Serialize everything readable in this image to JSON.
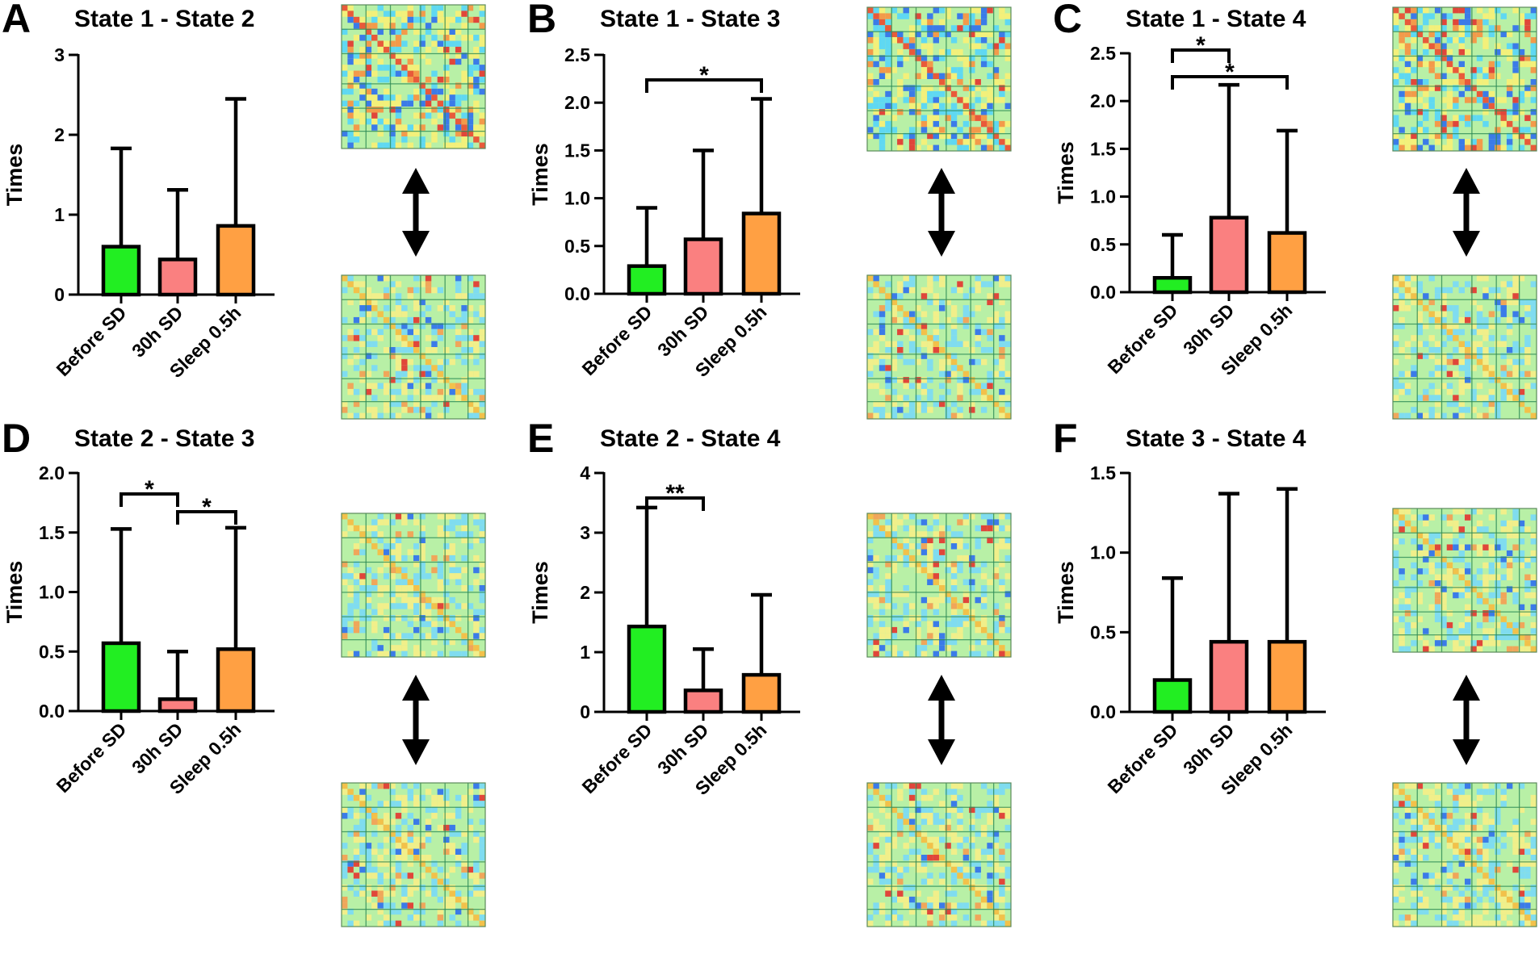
{
  "colors": {
    "green": "#22ee22",
    "pink": "#fa8080",
    "orange": "#ffa043",
    "axis": "#000000",
    "arrow": "#000000"
  },
  "chart_data": [
    {
      "type": "bar",
      "panel_letter": "A",
      "title": "State 1 - State 2",
      "ylabel": "Times",
      "categories": [
        "Before SD",
        "30h SD",
        "Sleep 0.5h"
      ],
      "values": [
        0.6,
        0.44,
        0.86
      ],
      "errors": [
        1.83,
        1.31,
        2.45
      ],
      "ylim": [
        0,
        3
      ],
      "yticks": [
        0,
        1,
        2,
        3
      ],
      "tick_labels": [
        "0",
        "1",
        "2",
        "3"
      ],
      "significance": []
    },
    {
      "type": "bar",
      "panel_letter": "B",
      "title": "State 1 - State 3",
      "ylabel": "Times",
      "categories": [
        "Before SD",
        "30h SD",
        "Sleep 0.5h"
      ],
      "values": [
        0.29,
        0.57,
        0.84
      ],
      "errors": [
        0.9,
        1.5,
        2.04
      ],
      "ylim": [
        0,
        2.5
      ],
      "yticks": [
        0,
        0.5,
        1,
        1.5,
        2,
        2.5
      ],
      "tick_labels": [
        "0.0",
        "0.5",
        "1.0",
        "1.5",
        "2.0",
        "2.5"
      ],
      "significance": [
        {
          "from": 0,
          "to": 2,
          "label": "*"
        }
      ]
    },
    {
      "type": "bar",
      "panel_letter": "C",
      "title": "State 1 - State 4",
      "ylabel": "Times",
      "categories": [
        "Before SD",
        "30h SD",
        "Sleep 0.5h"
      ],
      "values": [
        0.15,
        0.78,
        0.62
      ],
      "errors": [
        0.6,
        2.17,
        1.69
      ],
      "ylim": [
        0,
        2.5
      ],
      "yticks": [
        0,
        0.5,
        1,
        1.5,
        2,
        2.5
      ],
      "tick_labels": [
        "0.0",
        "0.5",
        "1.0",
        "1.5",
        "2.0",
        "2.5"
      ],
      "significance": [
        {
          "from": 0,
          "to": 1,
          "label": "*"
        },
        {
          "from": 0,
          "to": 2,
          "label": "*"
        }
      ]
    },
    {
      "type": "bar",
      "panel_letter": "D",
      "title": "State 2 - State 3",
      "ylabel": "Times",
      "categories": [
        "Before SD",
        "30h SD",
        "Sleep 0.5h"
      ],
      "values": [
        0.57,
        0.1,
        0.52
      ],
      "errors": [
        1.53,
        0.5,
        1.54
      ],
      "ylim": [
        0,
        2
      ],
      "yticks": [
        0,
        0.5,
        1,
        1.5,
        2
      ],
      "tick_labels": [
        "0.0",
        "0.5",
        "1.0",
        "1.5",
        "2.0"
      ],
      "significance": [
        {
          "from": 0,
          "to": 1,
          "label": "*"
        },
        {
          "from": 1,
          "to": 2,
          "label": "*"
        }
      ]
    },
    {
      "type": "bar",
      "panel_letter": "E",
      "title": "State 2 - State 4",
      "ylabel": "Times",
      "categories": [
        "Before SD",
        "30h SD",
        "Sleep 0.5h"
      ],
      "values": [
        1.43,
        0.36,
        0.62
      ],
      "errors": [
        3.42,
        1.05,
        1.96
      ],
      "ylim": [
        0,
        4
      ],
      "yticks": [
        0,
        1,
        2,
        3,
        4
      ],
      "tick_labels": [
        "0",
        "1",
        "2",
        "3",
        "4"
      ],
      "significance": [
        {
          "from": 0,
          "to": 1,
          "label": "**"
        }
      ]
    },
    {
      "type": "bar",
      "panel_letter": "F",
      "title": "State 3 - State 4",
      "ylabel": "Times",
      "categories": [
        "Before SD",
        "30h SD",
        "Sleep 0.5h"
      ],
      "values": [
        0.2,
        0.44,
        0.44
      ],
      "errors": [
        0.84,
        1.37,
        1.4
      ],
      "ylim": [
        0,
        1.5
      ],
      "yticks": [
        0,
        0.5,
        1,
        1.5
      ],
      "tick_labels": [
        "0.0",
        "0.5",
        "1.0",
        "1.5"
      ],
      "significance": []
    }
  ]
}
